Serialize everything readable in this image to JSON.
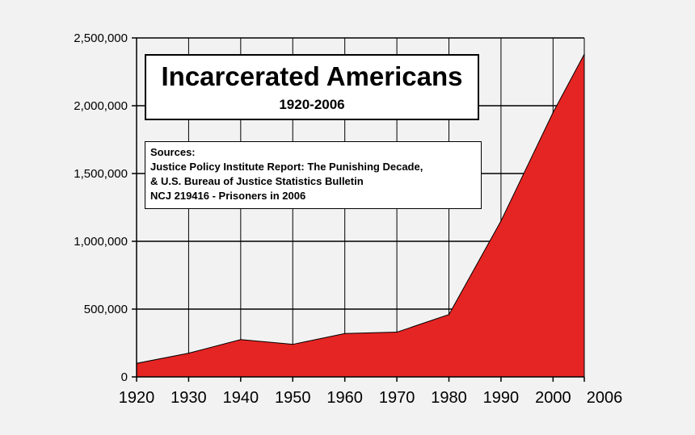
{
  "chart_data": {
    "type": "area",
    "title": "Incarcerated Americans",
    "subtitle": "1920-2006",
    "sources": {
      "heading": "Sources:",
      "lines": [
        "Justice Policy Institute Report: The Punishing Decade,",
        "& U.S. Bureau of Justice Statistics Bulletin",
        "NCJ 219416 - Prisoners in 2006"
      ]
    },
    "x": [
      1920,
      1930,
      1940,
      1950,
      1960,
      1970,
      1980,
      1990,
      2000,
      2006
    ],
    "values": [
      100000,
      175000,
      275000,
      240000,
      320000,
      330000,
      460000,
      1150000,
      1950000,
      2380000
    ],
    "xlim": [
      1920,
      2006
    ],
    "ylim": [
      0,
      2500000
    ],
    "x_ticks": [
      1920,
      1930,
      1940,
      1950,
      1960,
      1970,
      1980,
      1990,
      2000,
      2006
    ],
    "x_tick_labels": [
      "1920",
      "1930",
      "1940",
      "1950",
      "1960",
      "1970",
      "1980",
      "1990",
      "2000",
      "2006"
    ],
    "y_ticks": [
      0,
      500000,
      1000000,
      1500000,
      2000000,
      2500000
    ],
    "y_tick_labels": [
      "0",
      "500,000",
      "1,000,000",
      "1,500,000",
      "2,000,000",
      "2,500,000"
    ],
    "grid": true,
    "legend": "none",
    "fill_color": "#e52523",
    "line_color": "#000000",
    "background": "#f2f2f2"
  }
}
